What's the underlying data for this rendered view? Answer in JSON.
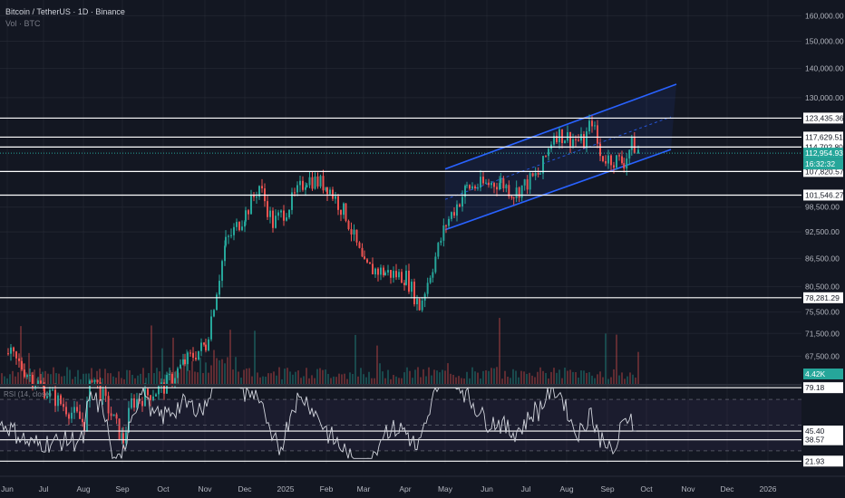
{
  "header": {
    "title": "Bitcoin / TetherUS · 1D · Binance",
    "volume_label": "Vol · BTC"
  },
  "rsi": {
    "label": "RSI (14, close)"
  },
  "colors": {
    "background": "#131722",
    "up": "#26a69a",
    "down": "#ef5350",
    "channel": "#2962ff",
    "level_line": "#ffffff",
    "rsi_line": "#d1d4dc",
    "price_badge": "#26a69a",
    "grid": "#2a2e39"
  },
  "chart_data": [
    {
      "type": "candlestick",
      "title": "Bitcoin / TetherUS · 1D · Binance",
      "x_ticks": [
        "Jun",
        "Jul",
        "Aug",
        "Sep",
        "Oct",
        "Nov",
        "Dec",
        "2025",
        "Feb",
        "Mar",
        "Apr",
        "May",
        "Jun",
        "Jul",
        "Aug",
        "Sep",
        "Oct",
        "Nov",
        "Dec",
        "2026"
      ],
      "y_ticks": [
        160000,
        150000,
        140000,
        130000,
        98500,
        92500,
        86500,
        80500,
        75500,
        71500,
        67500
      ],
      "y_scale": "log",
      "ylim": [
        63500,
        165000
      ],
      "last_price": "112,954.93",
      "countdown": "16:32:32",
      "horizontal_levels": [
        "123,435.36",
        "117,629.51",
        "114,702.80",
        "107,820.57",
        "101,546.27",
        "78,281.29"
      ],
      "price_path": [
        [
          "Jun",
          68000
        ],
        [
          "Jul",
          62000
        ],
        [
          "Aug",
          57000
        ],
        [
          "Aug",
          64500
        ],
        [
          "Sep",
          54500
        ],
        [
          "Sep",
          60000
        ],
        [
          "Oct",
          62500
        ],
        [
          "Oct",
          66500
        ],
        [
          "Nov",
          69500
        ],
        [
          "Nov",
          90000
        ],
        [
          "Dec",
          97000
        ],
        [
          "Dec",
          104000
        ],
        [
          "Dec",
          94500
        ],
        [
          "2025",
          98000
        ],
        [
          "2025",
          106000
        ],
        [
          "Feb",
          104000
        ],
        [
          "Feb",
          96500
        ],
        [
          "Mar",
          84500
        ],
        [
          "Mar",
          83500
        ],
        [
          "Apr",
          82500
        ],
        [
          "Apr",
          76500
        ],
        [
          "Apr",
          85000
        ],
        [
          "May",
          94500
        ],
        [
          "May",
          103500
        ],
        [
          "Jun",
          105000
        ],
        [
          "Jun",
          102000
        ],
        [
          "Jul",
          107500
        ],
        [
          "Jul",
          119000
        ],
        [
          "Aug",
          116000
        ],
        [
          "Aug",
          123000
        ],
        [
          "Aug",
          112000
        ],
        [
          "Sep",
          110500
        ],
        [
          "Sep",
          115500
        ],
        [
          "Sep",
          112954.93
        ]
      ],
      "channel": {
        "lower": [
          [
            "May",
            93000
          ],
          [
            "Oct",
            114000
          ]
        ],
        "upper": [
          [
            "May",
            108500
          ],
          [
            "Oct",
            134500
          ]
        ]
      },
      "volume": {
        "label": "Vol · BTC",
        "last": "4.42K"
      }
    },
    {
      "type": "line",
      "title": "RSI (14, close)",
      "levels": [
        "79.18",
        "45.40",
        "38.57",
        "21.93"
      ],
      "last": 45.4,
      "ylim": [
        20,
        80
      ]
    }
  ]
}
